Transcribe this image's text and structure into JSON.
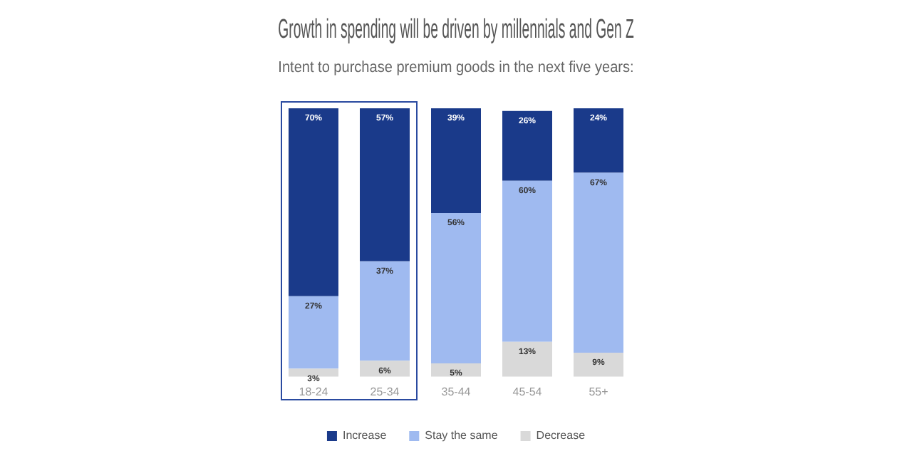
{
  "chart_data": {
    "type": "bar",
    "title": "Growth in spending will be driven by millennials and Gen Z",
    "subtitle": "Intent to purchase premium goods in the next five years:",
    "categories": [
      "18-24",
      "25-34",
      "35-44",
      "45-54",
      "55+"
    ],
    "stacked": true,
    "legend": "bottom",
    "grid": false,
    "series": [
      {
        "name": "Decrease",
        "color": "#d9d9d9",
        "values": [
          3,
          6,
          5,
          13,
          9
        ],
        "value_labels": [
          "3%",
          "6%",
          "5%",
          "13%",
          "9%"
        ]
      },
      {
        "name": "Stay the same",
        "color": "#9fbaf0",
        "values": [
          27,
          37,
          56,
          60,
          67
        ],
        "value_labels": [
          "27%",
          "37%",
          "56%",
          "60%",
          "67%"
        ]
      },
      {
        "name": "Increase",
        "color": "#1a3a8a",
        "values": [
          70,
          57,
          39,
          26,
          24
        ],
        "value_labels": [
          "70%",
          "57%",
          "39%",
          "26%",
          "24%"
        ]
      }
    ]
  }
}
